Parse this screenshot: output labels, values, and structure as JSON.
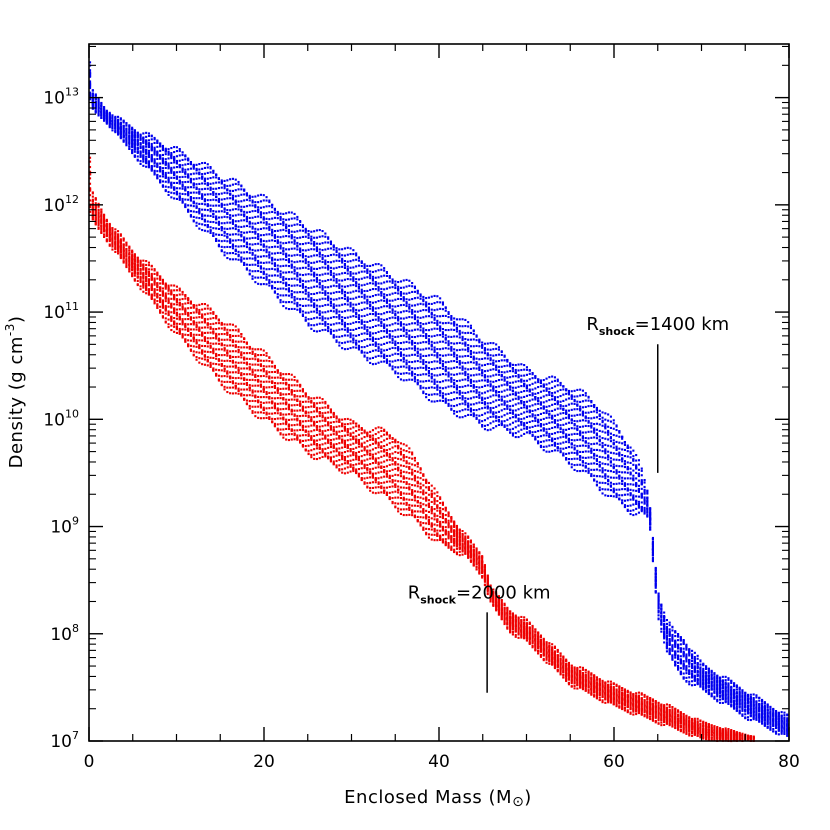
{
  "chart_data": {
    "type": "scatter",
    "title": "",
    "xlabel": "Enclosed Mass (M",
    "xlabel_sym": "⊙",
    "xlabel_end": ")",
    "ylabel": "Density (g cm",
    "ylabel_sup": "-3",
    "ylabel_end": ")",
    "xlim": [
      0,
      80
    ],
    "ylim_log10": [
      7,
      13.5
    ],
    "x_ticks": [
      {
        "value": 0,
        "label": "0"
      },
      {
        "value": 20,
        "label": "20"
      },
      {
        "value": 40,
        "label": "40"
      },
      {
        "value": 60,
        "label": "60"
      },
      {
        "value": 80,
        "label": "80"
      }
    ],
    "y_ticks": [
      {
        "exp": 7,
        "base": "10",
        "sup": "7"
      },
      {
        "exp": 8,
        "base": "10",
        "sup": "8"
      },
      {
        "exp": 9,
        "base": "10",
        "sup": "9"
      },
      {
        "exp": 10,
        "base": "10",
        "sup": "10"
      },
      {
        "exp": 11,
        "base": "10",
        "sup": "11"
      },
      {
        "exp": 12,
        "base": "10",
        "sup": "12"
      },
      {
        "exp": 13,
        "base": "10",
        "sup": "13"
      }
    ],
    "series": [
      {
        "name": "R_shock = 1400 km",
        "color": "#0000ee",
        "upper_envelope": [
          [
            0,
            13.45
          ],
          [
            0.3,
            13.05
          ],
          [
            2,
            12.85
          ],
          [
            5,
            12.7
          ],
          [
            10,
            12.5
          ],
          [
            20,
            12.05
          ],
          [
            30,
            11.55
          ],
          [
            40,
            11.1
          ],
          [
            45,
            10.75
          ],
          [
            50,
            10.45
          ],
          [
            55,
            10.3
          ],
          [
            58,
            10.15
          ],
          [
            60,
            9.95
          ],
          [
            62,
            9.75
          ],
          [
            63,
            9.55
          ],
          [
            64,
            9.25
          ],
          [
            65,
            8.4
          ],
          [
            66,
            8.1
          ],
          [
            67,
            8.0
          ],
          [
            68,
            7.95
          ],
          [
            70,
            7.7
          ],
          [
            75,
            7.45
          ],
          [
            80,
            7.2
          ]
        ],
        "lower_envelope": [
          [
            0,
            13.0
          ],
          [
            0.5,
            12.9
          ],
          [
            2,
            12.8
          ],
          [
            5,
            12.5
          ],
          [
            10,
            12.05
          ],
          [
            15,
            11.6
          ],
          [
            20,
            11.25
          ],
          [
            25,
            10.9
          ],
          [
            30,
            10.65
          ],
          [
            35,
            10.45
          ],
          [
            40,
            10.15
          ],
          [
            45,
            9.95
          ],
          [
            50,
            9.85
          ],
          [
            55,
            9.6
          ],
          [
            58,
            9.4
          ],
          [
            60,
            9.25
          ],
          [
            62,
            9.15
          ],
          [
            64,
            9.1
          ],
          [
            65,
            8.2
          ],
          [
            66,
            7.85
          ],
          [
            67,
            7.7
          ],
          [
            68,
            7.6
          ],
          [
            70,
            7.5
          ],
          [
            75,
            7.25
          ],
          [
            80,
            7.05
          ]
        ]
      },
      {
        "name": "R_shock = 2000 km",
        "color": "#ee0000",
        "upper_envelope": [
          [
            0,
            12.6
          ],
          [
            0.3,
            12.1
          ],
          [
            2,
            11.85
          ],
          [
            5,
            11.55
          ],
          [
            10,
            11.2
          ],
          [
            15,
            10.95
          ],
          [
            20,
            10.6
          ],
          [
            25,
            10.25
          ],
          [
            30,
            9.95
          ],
          [
            35,
            9.85
          ],
          [
            38,
            9.55
          ],
          [
            40,
            9.25
          ],
          [
            43,
            8.9
          ],
          [
            45,
            8.7
          ],
          [
            46,
            8.4
          ],
          [
            48,
            8.2
          ],
          [
            50,
            8.1
          ],
          [
            55,
            7.7
          ],
          [
            60,
            7.5
          ],
          [
            65,
            7.35
          ],
          [
            70,
            7.15
          ],
          [
            76,
            7.0
          ]
        ],
        "lower_envelope": [
          [
            0,
            11.95
          ],
          [
            0.5,
            11.85
          ],
          [
            2,
            11.7
          ],
          [
            5,
            11.35
          ],
          [
            10,
            10.8
          ],
          [
            15,
            10.35
          ],
          [
            20,
            10.0
          ],
          [
            25,
            9.7
          ],
          [
            30,
            9.5
          ],
          [
            35,
            9.2
          ],
          [
            38,
            9.0
          ],
          [
            40,
            8.85
          ],
          [
            43,
            8.75
          ],
          [
            45,
            8.55
          ],
          [
            46,
            8.3
          ],
          [
            48,
            8.05
          ],
          [
            50,
            7.95
          ],
          [
            55,
            7.55
          ],
          [
            60,
            7.35
          ],
          [
            65,
            7.2
          ],
          [
            70,
            7.05
          ],
          [
            75,
            7.0
          ]
        ]
      }
    ],
    "annotations": [
      {
        "text_main": "R",
        "text_sub": "shock",
        "text_val": "=1400 km",
        "x": 65,
        "line_top_log": 10.7,
        "line_bottom_log": 9.5
      },
      {
        "text_main": "R",
        "text_sub": "shock",
        "text_val": "=2000 km",
        "x": 45.5,
        "line_top_log": 8.2,
        "line_bottom_log": 7.45
      }
    ]
  }
}
